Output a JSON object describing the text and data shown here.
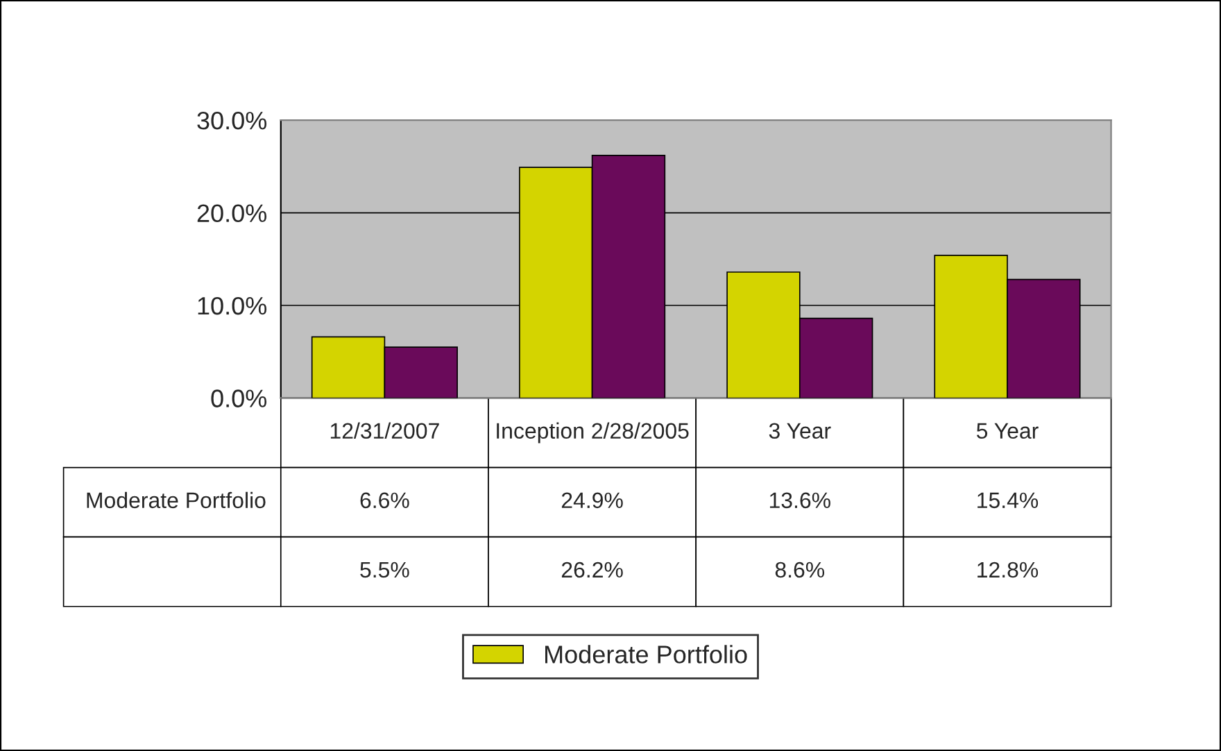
{
  "chart_data": {
    "type": "bar",
    "categories": [
      "12/31/2007",
      "Inception 2/28/2005",
      "3 Year",
      "5 Year"
    ],
    "series": [
      {
        "name": "Moderate Portfolio",
        "color": "#d4d400",
        "values": [
          6.6,
          24.9,
          13.6,
          15.4
        ],
        "value_labels": [
          "6.6%",
          "24.9%",
          "13.6%",
          "15.4%"
        ]
      },
      {
        "color": "#6a0a5a",
        "values": [
          5.5,
          26.2,
          8.6,
          12.8
        ],
        "value_labels": [
          "5.5%",
          "26.2%",
          "8.6%",
          "12.8%"
        ]
      }
    ],
    "ylim": [
      0,
      30
    ],
    "yticks": [
      {
        "value": 0,
        "label": "0.0%"
      },
      {
        "value": 10,
        "label": "10.0%"
      },
      {
        "value": 20,
        "label": "20.0%"
      },
      {
        "value": 30,
        "label": "30.0%"
      }
    ],
    "grid": "y",
    "legend": "bottom"
  }
}
